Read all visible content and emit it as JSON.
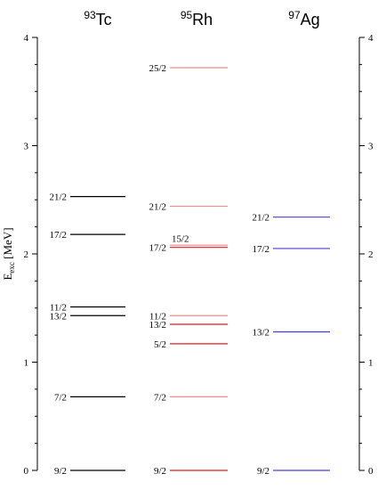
{
  "chart_data": {
    "type": "level-scheme",
    "ylabel_main": "E",
    "ylabel_sub": "exc",
    "ylabel_unit": " [MeV]",
    "ylim": [
      0,
      4
    ],
    "yticks": [
      0,
      1,
      2,
      3,
      4
    ],
    "yticklabels": [
      "0",
      "1",
      "2",
      "3",
      "4"
    ],
    "colors": {
      "black": "#000000",
      "red": "#e31a1c",
      "pink": "#f28b8b",
      "blue": "#4b3fd6"
    },
    "nuclei": [
      {
        "mass": "93",
        "symbol": "Tc",
        "color": "#000000",
        "levels": [
          {
            "label": "9/2",
            "energy": 0.0
          },
          {
            "label": "7/2",
            "energy": 0.68
          },
          {
            "label": "13/2",
            "energy": 1.43
          },
          {
            "label": "11/2",
            "energy": 1.51
          },
          {
            "label": "17/2",
            "energy": 2.18
          },
          {
            "label": "21/2",
            "energy": 2.53
          }
        ]
      },
      {
        "mass": "95",
        "symbol": "Rh",
        "color": "#e31a1c",
        "levels": [
          {
            "label": "9/2",
            "energy": 0.0,
            "color": "#e31a1c"
          },
          {
            "label": "7/2",
            "energy": 0.68,
            "color": "#f28b8b"
          },
          {
            "label": "5/2",
            "energy": 1.17,
            "color": "#e31a1c"
          },
          {
            "label": "13/2",
            "energy": 1.35,
            "color": "#e31a1c"
          },
          {
            "label": "11/2",
            "energy": 1.43,
            "color": "#f28b8b"
          },
          {
            "label": "17/2",
            "energy": 2.06,
            "color": "#e31a1c"
          },
          {
            "label": "15/2",
            "energy": 2.08,
            "color": "#f28b8b",
            "label_pos": "above"
          },
          {
            "label": "21/2",
            "energy": 2.44,
            "color": "#f28b8b"
          },
          {
            "label": "25/2",
            "energy": 3.72,
            "color": "#f28b8b"
          }
        ]
      },
      {
        "mass": "97",
        "symbol": "Ag",
        "color": "#4b3fd6",
        "levels": [
          {
            "label": "9/2",
            "energy": 0.0
          },
          {
            "label": "13/2",
            "energy": 1.28
          },
          {
            "label": "17/2",
            "energy": 2.05
          },
          {
            "label": "21/2",
            "energy": 2.34
          }
        ]
      }
    ]
  }
}
